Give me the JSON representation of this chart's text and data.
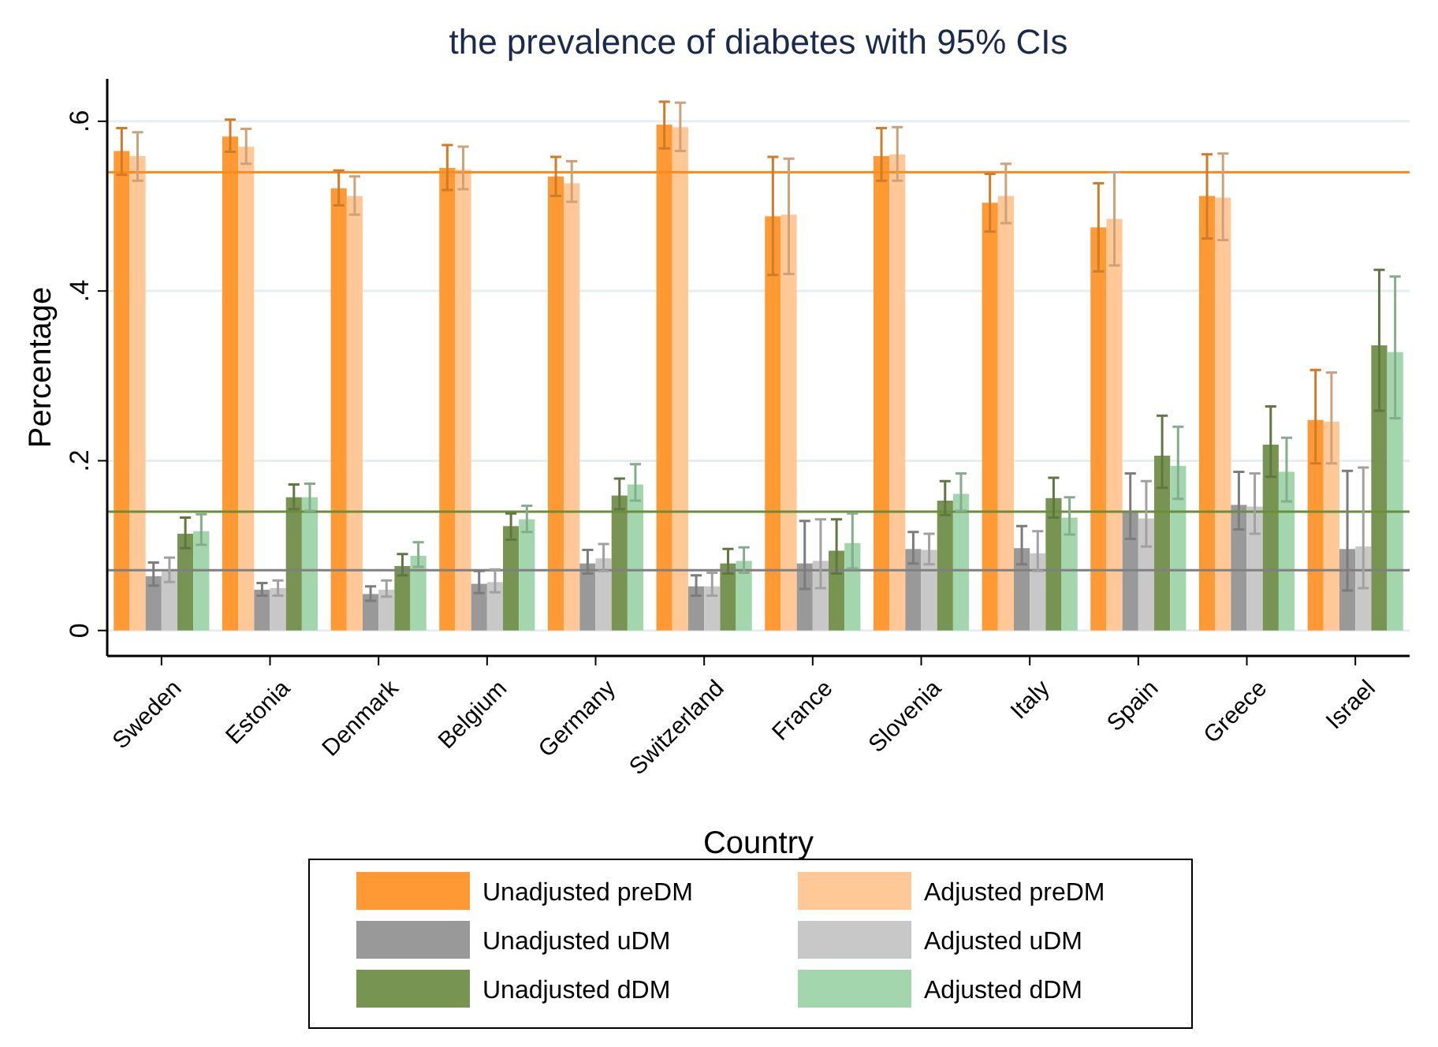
{
  "chart_data": {
    "type": "bar",
    "title": "the prevalence of diabetes with 95% CIs",
    "xlabel": "Country",
    "ylabel": "Percentage",
    "categories": [
      "Sweden",
      "Estonia",
      "Denmark",
      "Belgium",
      "Germany",
      "Switzerland",
      "France",
      "Slovenia",
      "Italy",
      "Spain",
      "Greece",
      "Israel"
    ],
    "series": [
      {
        "name": "Unadjusted preDM",
        "color": "#ff9933",
        "values": [
          0.565,
          0.582,
          0.521,
          0.545,
          0.535,
          0.596,
          0.488,
          0.559,
          0.504,
          0.475,
          0.512,
          0.248
        ],
        "errors": [
          [
            0.537,
            0.592
          ],
          [
            0.564,
            0.602
          ],
          [
            0.501,
            0.542
          ],
          [
            0.519,
            0.572
          ],
          [
            0.512,
            0.558
          ],
          [
            0.568,
            0.623
          ],
          [
            0.419,
            0.558
          ],
          [
            0.53,
            0.592
          ],
          [
            0.47,
            0.538
          ],
          [
            0.423,
            0.527
          ],
          [
            0.462,
            0.561
          ],
          [
            0.197,
            0.307
          ]
        ]
      },
      {
        "name": "Adjusted preDM",
        "color": "#ffc896",
        "values": [
          0.559,
          0.57,
          0.512,
          0.543,
          0.527,
          0.593,
          0.49,
          0.561,
          0.512,
          0.485,
          0.51,
          0.246
        ],
        "errors": [
          [
            0.53,
            0.587
          ],
          [
            0.55,
            0.591
          ],
          [
            0.49,
            0.535
          ],
          [
            0.52,
            0.57
          ],
          [
            0.505,
            0.553
          ],
          [
            0.565,
            0.622
          ],
          [
            0.42,
            0.556
          ],
          [
            0.53,
            0.593
          ],
          [
            0.48,
            0.55
          ],
          [
            0.43,
            0.54
          ],
          [
            0.46,
            0.562
          ],
          [
            0.197,
            0.304
          ]
        ]
      },
      {
        "name": "Unadjusted uDM",
        "color": "#999999",
        "values": [
          0.064,
          0.048,
          0.043,
          0.055,
          0.079,
          0.052,
          0.079,
          0.096,
          0.097,
          0.141,
          0.148,
          0.096
        ],
        "errors": [
          [
            0.053,
            0.08
          ],
          [
            0.041,
            0.056
          ],
          [
            0.035,
            0.052
          ],
          [
            0.044,
            0.07
          ],
          [
            0.067,
            0.095
          ],
          [
            0.041,
            0.065
          ],
          [
            0.049,
            0.129
          ],
          [
            0.079,
            0.116
          ],
          [
            0.078,
            0.123
          ],
          [
            0.108,
            0.185
          ],
          [
            0.119,
            0.187
          ],
          [
            0.047,
            0.188
          ]
        ]
      },
      {
        "name": "Adjusted uDM",
        "color": "#c8c8c8",
        "values": [
          0.07,
          0.05,
          0.048,
          0.057,
          0.085,
          0.052,
          0.082,
          0.095,
          0.091,
          0.132,
          0.146,
          0.099
        ],
        "errors": [
          [
            0.057,
            0.086
          ],
          [
            0.041,
            0.059
          ],
          [
            0.04,
            0.059
          ],
          [
            0.045,
            0.072
          ],
          [
            0.07,
            0.102
          ],
          [
            0.041,
            0.068
          ],
          [
            0.05,
            0.131
          ],
          [
            0.078,
            0.114
          ],
          [
            0.07,
            0.117
          ],
          [
            0.099,
            0.176
          ],
          [
            0.114,
            0.185
          ],
          [
            0.05,
            0.192
          ]
        ]
      },
      {
        "name": "Unadjusted dDM",
        "color": "#789452",
        "values": [
          0.114,
          0.157,
          0.076,
          0.123,
          0.159,
          0.079,
          0.094,
          0.153,
          0.156,
          0.206,
          0.219,
          0.336
        ],
        "errors": [
          [
            0.097,
            0.133
          ],
          [
            0.143,
            0.172
          ],
          [
            0.065,
            0.09
          ],
          [
            0.107,
            0.138
          ],
          [
            0.143,
            0.179
          ],
          [
            0.067,
            0.096
          ],
          [
            0.067,
            0.131
          ],
          [
            0.136,
            0.176
          ],
          [
            0.133,
            0.18
          ],
          [
            0.168,
            0.253
          ],
          [
            0.181,
            0.264
          ],
          [
            0.259,
            0.425
          ]
        ]
      },
      {
        "name": "Adjusted dDM",
        "color": "#a3d6ac",
        "values": [
          0.117,
          0.157,
          0.088,
          0.131,
          0.172,
          0.082,
          0.103,
          0.161,
          0.133,
          0.194,
          0.187,
          0.328
        ],
        "errors": [
          [
            0.101,
            0.137
          ],
          [
            0.141,
            0.173
          ],
          [
            0.075,
            0.104
          ],
          [
            0.116,
            0.147
          ],
          [
            0.153,
            0.196
          ],
          [
            0.068,
            0.098
          ],
          [
            0.073,
            0.138
          ],
          [
            0.141,
            0.185
          ],
          [
            0.113,
            0.157
          ],
          [
            0.155,
            0.24
          ],
          [
            0.152,
            0.227
          ],
          [
            0.25,
            0.417
          ]
        ]
      }
    ],
    "ref_lines": [
      {
        "axis": "y",
        "value": 0.54,
        "color": "#ff8c1a"
      },
      {
        "axis": "y",
        "value": 0.14,
        "color": "#6b8e3a"
      },
      {
        "axis": "y",
        "value": 0.071,
        "color": "#808080"
      }
    ],
    "ylim": [
      -0.03,
      0.65
    ],
    "yticks": [
      0,
      {
        "value": 0.2,
        "label": ".2"
      },
      {
        "value": 0.4,
        "label": ".4"
      },
      {
        "value": 0.6,
        "label": ".6"
      }
    ],
    "grid": "y",
    "legend": "bottom"
  }
}
